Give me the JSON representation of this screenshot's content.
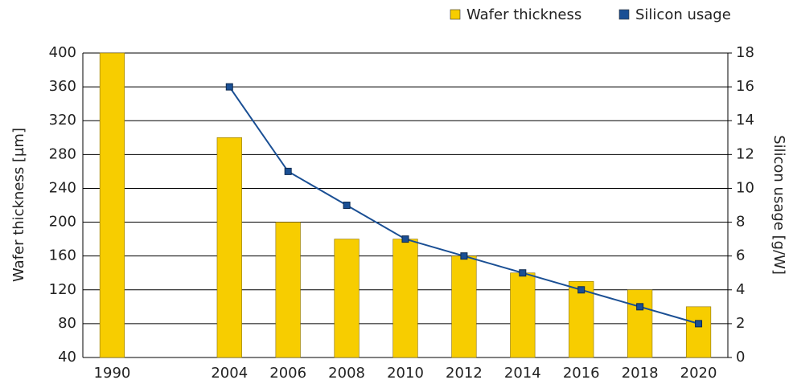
{
  "chart_data": {
    "type": "bar",
    "categories": [
      "1990",
      null,
      "2004",
      "2006",
      "2008",
      "2010",
      "2012",
      "2014",
      "2016",
      "2018",
      "2020"
    ],
    "series": [
      {
        "name": "Wafer thickness",
        "type": "bar",
        "color": "#f7cd00",
        "values": [
          400,
          null,
          300,
          200,
          180,
          180,
          160,
          140,
          130,
          120,
          100
        ]
      },
      {
        "name": "Silicon usage",
        "type": "line",
        "axis": "y2",
        "color": "#1a4f94",
        "values": [
          null,
          null,
          16,
          11,
          9,
          7,
          6,
          5,
          4,
          3,
          2
        ]
      }
    ],
    "ylabel": "Wafer thickness [µm]",
    "y2label": "Silicon usage [g/W]",
    "ylim": [
      40,
      400
    ],
    "yticks": [
      40,
      80,
      120,
      160,
      200,
      240,
      280,
      320,
      360,
      400
    ],
    "y2lim": [
      0,
      18
    ],
    "y2ticks": [
      0,
      2,
      4,
      6,
      8,
      10,
      12,
      14,
      16,
      18
    ],
    "grid": true,
    "legend": "top-right"
  }
}
